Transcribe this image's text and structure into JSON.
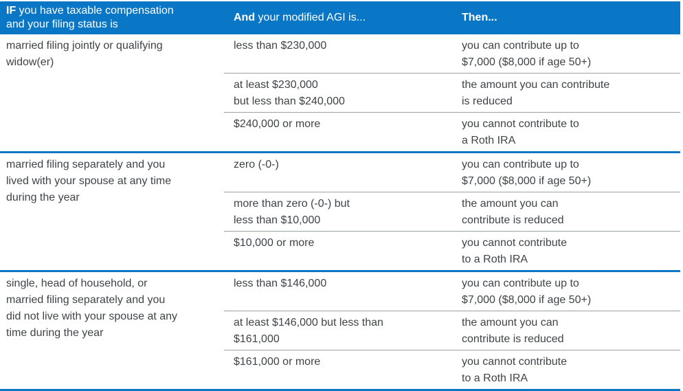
{
  "table": {
    "accent_blue": "#0a76c6",
    "divider_gray": "#9ba2a7",
    "header": {
      "col1_bold": "IF",
      "col1_line1_rest": " you have taxable compensation",
      "col1_line2": "and your filing status is",
      "col2_bold": "And",
      "col2_rest": " your modified AGI is...",
      "col3_bold": "Then..."
    },
    "groups": [
      {
        "status": "married filing jointly or qualifying\nwidow(er)",
        "rows": [
          {
            "agi": "less than $230,000",
            "then": "you can contribute up to\n$7,000 ($8,000 if age 50+)"
          },
          {
            "agi": "at least $230,000\nbut less than $240,000",
            "then": "the amount you can contribute\nis reduced"
          },
          {
            "agi": "$240,000 or more",
            "then": "you cannot contribute to\na Roth IRA"
          }
        ]
      },
      {
        "status": "married filing separately and you\nlived with your spouse at any time\nduring the year",
        "rows": [
          {
            "agi": "zero (-0-)",
            "then": "you can contribute up to\n$7,000 ($8,000 if age 50+)"
          },
          {
            "agi": "more than zero (-0-) but\nless than $10,000",
            "then": "the amount you can\ncontribute is reduced"
          },
          {
            "agi": "$10,000 or more",
            "then": "you cannot contribute\nto a Roth IRA"
          }
        ]
      },
      {
        "status": "single, head of household, or\nmarried filing separately and you\ndid not live with your spouse at any\ntime during the year",
        "rows": [
          {
            "agi": "less than $146,000",
            "then": "you can contribute up to\n$7,000 ($8,000 if age 50+)"
          },
          {
            "agi": "at least $146,000 but less than\n$161,000",
            "then": "the amount you can\ncontribute is reduced"
          },
          {
            "agi": "$161,000 or more",
            "then": "you cannot contribute\nto a Roth IRA"
          }
        ]
      }
    ]
  }
}
